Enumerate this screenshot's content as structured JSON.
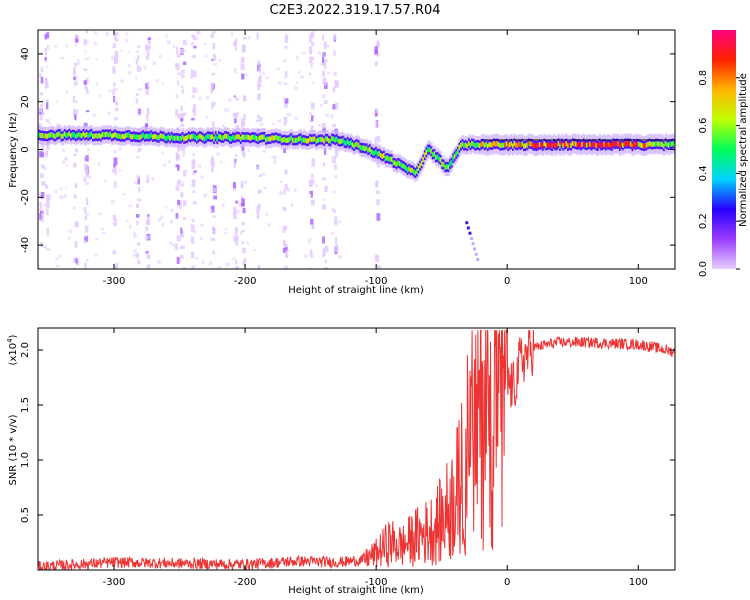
{
  "figure": {
    "title": "C2E3.2022.319.17.57.R04"
  },
  "chart_data": [
    {
      "type": "heatmap",
      "title": "",
      "xlabel": "Height of straight line (km)",
      "ylabel": "Frequency (Hz)",
      "xlim": [
        -358,
        128
      ],
      "ylim": [
        -50,
        50
      ],
      "x_ticks": [
        -300,
        -200,
        -100,
        0,
        100
      ],
      "y_ticks": [
        -40,
        -20,
        0,
        20,
        40
      ],
      "grid": false,
      "colorbar": {
        "label": "Normalized spectral amplitude",
        "range": [
          0,
          1
        ],
        "ticks": [
          "0.0",
          "0.2",
          "0.4",
          "0.6",
          "0.8"
        ],
        "colors": [
          "#e6ccff",
          "#9a3cff",
          "#2800ff",
          "#00d2ff",
          "#00ff5a",
          "#bfff00",
          "#ffb400",
          "#ff2200",
          "#ff0080"
        ]
      },
      "ridge": {
        "x": [
          -350,
          -300,
          -250,
          -200,
          -150,
          -130,
          -110,
          -90,
          -70,
          -60,
          -45,
          -35,
          -30,
          -20,
          0,
          50,
          100,
          128
        ],
        "y": [
          6,
          6,
          5,
          5,
          4,
          4,
          1,
          -4,
          -10,
          0,
          -8,
          2,
          2,
          2,
          2,
          2,
          2,
          2
        ]
      }
    },
    {
      "type": "line",
      "title": "",
      "xlabel": "Height of straight line (km)",
      "ylabel": "SNR (10 * v/v)",
      "y_multiplier": "(x10",
      "y_multiplier_exp": "4",
      "y_multiplier_close": ")",
      "xlim": [
        -358,
        128
      ],
      "ylim": [
        0,
        22000
      ],
      "x_ticks": [
        -300,
        -200,
        -100,
        0,
        100
      ],
      "y_ticks": [
        "0.5",
        "1.0",
        "1.5",
        "2.0"
      ],
      "y_tick_values": [
        5000,
        10000,
        15000,
        20000
      ],
      "grid": false,
      "series": [
        {
          "name": "",
          "color": "#ee3333",
          "x": [
            -358,
            -300,
            -250,
            -200,
            -160,
            -130,
            -110,
            -100,
            -90,
            -80,
            -70,
            -60,
            -50,
            -40,
            -35,
            -30,
            -25,
            -20,
            -15,
            -10,
            -5,
            0,
            5,
            10,
            20,
            30,
            40,
            60,
            80,
            100,
            110,
            128
          ],
          "y": [
            300,
            700,
            600,
            500,
            800,
            700,
            900,
            1500,
            2500,
            2200,
            3000,
            3500,
            4500,
            6500,
            8000,
            11000,
            14000,
            16000,
            16500,
            17000,
            17500,
            17000,
            16500,
            19000,
            20200,
            20500,
            20700,
            20700,
            20600,
            20500,
            20300,
            19800
          ]
        }
      ]
    }
  ]
}
